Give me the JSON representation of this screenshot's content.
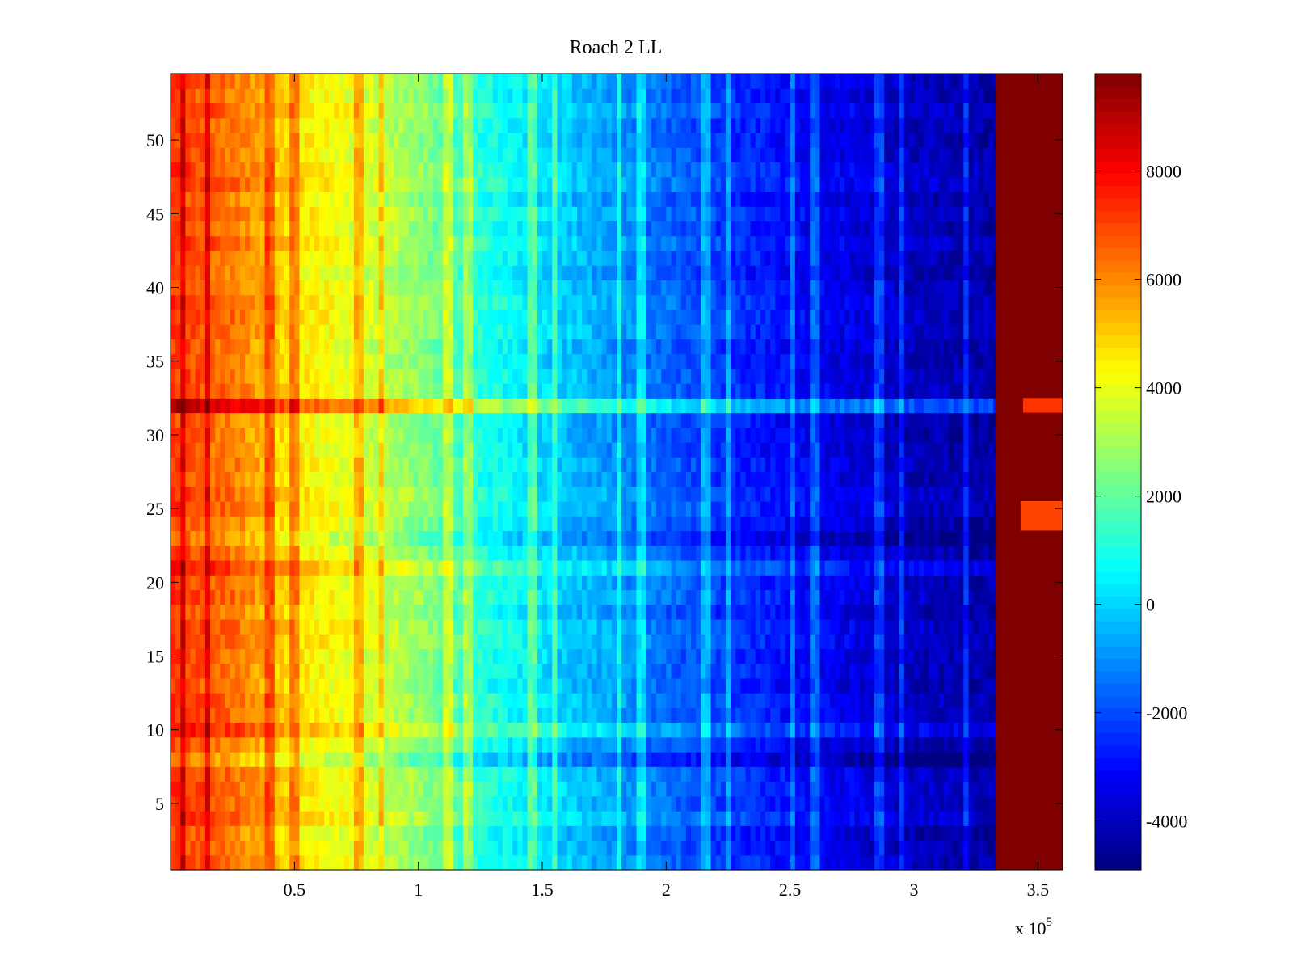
{
  "chart_data": {
    "type": "heatmap",
    "title": "Roach 2 LL",
    "xlabel": "",
    "ylabel": "",
    "x_range": [
      0,
      360000
    ],
    "y_range": [
      0.5,
      54.5
    ],
    "x_ticks": [
      {
        "value": 50000,
        "label": "0.5"
      },
      {
        "value": 100000,
        "label": "1"
      },
      {
        "value": 150000,
        "label": "1.5"
      },
      {
        "value": 200000,
        "label": "2"
      },
      {
        "value": 250000,
        "label": "2.5"
      },
      {
        "value": 300000,
        "label": "3"
      },
      {
        "value": 350000,
        "label": "3.5"
      }
    ],
    "x_multiplier_base": "x 10",
    "x_multiplier_exp": "5",
    "y_ticks": [
      {
        "value": 5,
        "label": "5"
      },
      {
        "value": 10,
        "label": "10"
      },
      {
        "value": 15,
        "label": "15"
      },
      {
        "value": 20,
        "label": "20"
      },
      {
        "value": 25,
        "label": "25"
      },
      {
        "value": 30,
        "label": "30"
      },
      {
        "value": 35,
        "label": "35"
      },
      {
        "value": 40,
        "label": "40"
      },
      {
        "value": 45,
        "label": "45"
      },
      {
        "value": 50,
        "label": "50"
      }
    ],
    "colormap": "jet",
    "color_range": [
      -4900,
      9800
    ],
    "colorbar_ticks": [
      {
        "value": -4000,
        "label": "-4000"
      },
      {
        "value": -2000,
        "label": "-2000"
      },
      {
        "value": 0,
        "label": "0"
      },
      {
        "value": 2000,
        "label": "2000"
      },
      {
        "value": 4000,
        "label": "4000"
      },
      {
        "value": 6000,
        "label": "6000"
      },
      {
        "value": 8000,
        "label": "8000"
      }
    ],
    "profile_x": [
      0,
      25000,
      50000,
      75000,
      100000,
      125000,
      150000,
      175000,
      200000,
      225000,
      250000,
      275000,
      300000,
      332000
    ],
    "profile_value": [
      7200,
      6300,
      4600,
      3900,
      2700,
      1100,
      200,
      -700,
      -1600,
      -2300,
      -3000,
      -3500,
      -4000,
      -4300
    ],
    "saturated_region": {
      "x_start": 333000,
      "x_end": 360000,
      "value": 9800
    },
    "bright_columns_x": [
      5000,
      15000,
      40000,
      50000,
      76000,
      85000,
      112000,
      120000,
      146000,
      155000,
      181000,
      190000,
      216000,
      225000,
      251000,
      260000,
      286000,
      295000,
      321000
    ],
    "bright_rows": [
      {
        "y": 32,
        "delta": 2000
      },
      {
        "y": 21,
        "delta": 900
      },
      {
        "y": 10,
        "delta": 900
      },
      {
        "y": 4,
        "delta": 600
      },
      {
        "y": 23,
        "delta": -500
      },
      {
        "y": 8,
        "delta": -700
      },
      {
        "y": 47,
        "delta": 400
      },
      {
        "y": 37,
        "delta": 300
      }
    ],
    "inset_bands": [
      {
        "y_start": 31.5,
        "y_end": 32.5,
        "x_start": 344000,
        "x_end": 360000,
        "value": 7200
      },
      {
        "y_start": 23.5,
        "y_end": 25.5,
        "x_start": 343000,
        "x_end": 360000,
        "value": 7000
      }
    ]
  }
}
